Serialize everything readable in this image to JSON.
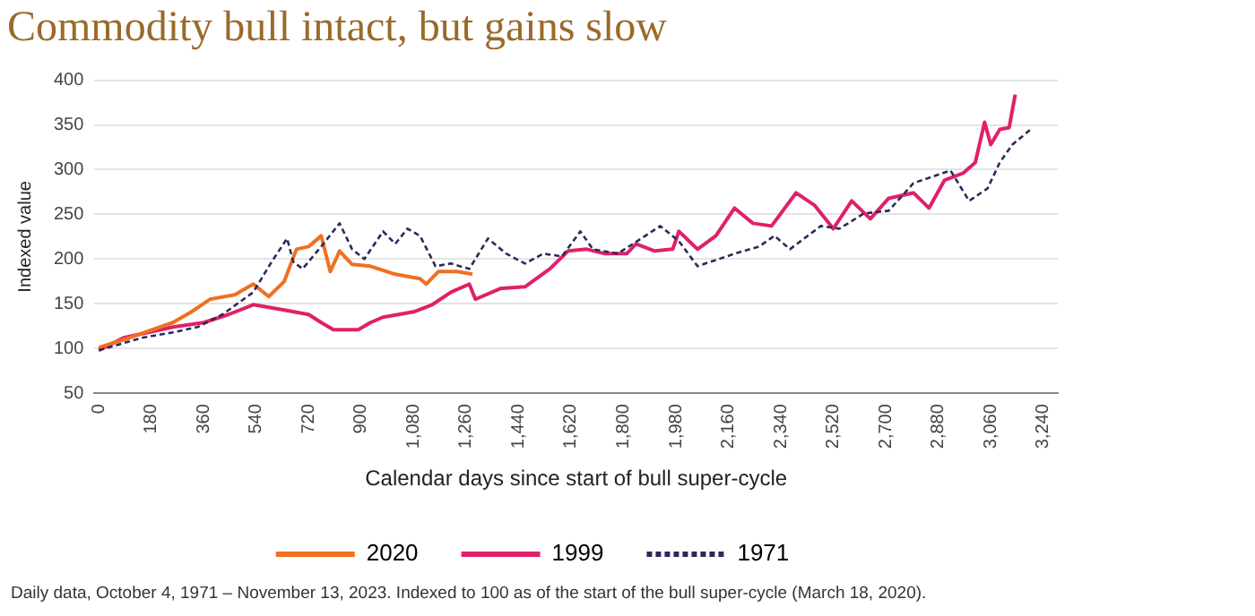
{
  "chart_data": {
    "type": "line",
    "title": "Commodity bull intact, but gains slow",
    "xlabel": "Calendar days since start of bull super-cycle",
    "ylabel": "Indexed value",
    "annotations": [
      "Daily data, October 4, 1971 – November 13, 2023. Indexed to 100 as of the start of the bull super-cycle (March 18, 2020)."
    ],
    "xlim": [
      -15,
      3290
    ],
    "xticks": [
      0,
      180,
      360,
      540,
      720,
      900,
      {
        "value": 1080,
        "label": "1,080"
      },
      {
        "value": 1260,
        "label": "1,260"
      },
      {
        "value": 1440,
        "label": "1,440"
      },
      {
        "value": 1620,
        "label": "1,620"
      },
      {
        "value": 1800,
        "label": "1,800"
      },
      {
        "value": 1980,
        "label": "1,980"
      },
      {
        "value": 2160,
        "label": "2,160"
      },
      {
        "value": 2340,
        "label": "2,340"
      },
      {
        "value": 2520,
        "label": "2,520"
      },
      {
        "value": 2700,
        "label": "2,700"
      },
      {
        "value": 2880,
        "label": "2,880"
      },
      {
        "value": 3060,
        "label": "3,060"
      },
      {
        "value": 3240,
        "label": "3,240"
      }
    ],
    "ylim": [
      50,
      400
    ],
    "yticks": [
      50,
      100,
      150,
      200,
      250,
      300,
      350,
      400
    ],
    "grid": "y",
    "legend": "bottom",
    "marker": "none",
    "series": [
      {
        "name": "2020",
        "color": "#f07020",
        "line_style": "solid",
        "x": [
          0,
          106,
          254,
          318,
          381,
          466,
          530,
          583,
          636,
          678,
          720,
          763,
          794,
          826,
          869,
          932,
          1017,
          1102,
          1123,
          1165,
          1229,
          1282
        ],
        "values": [
          101,
          112,
          129,
          141,
          155,
          160,
          172,
          158,
          175,
          211,
          214,
          226,
          186,
          209,
          194,
          192,
          183,
          178,
          172,
          186,
          186,
          183
        ]
      },
      {
        "name": "1999",
        "color": "#e0206a",
        "line_style": "solid",
        "x": [
          0,
          85,
          254,
          360,
          445,
          530,
          636,
          720,
          763,
          805,
          890,
          932,
          975,
          1080,
          1144,
          1208,
          1271,
          1292,
          1377,
          1462,
          1547,
          1610,
          1674,
          1737,
          1811,
          1843,
          1907,
          1969,
          1990,
          2054,
          2117,
          2181,
          2244,
          2308,
          2392,
          2456,
          2520,
          2583,
          2647,
          2710,
          2795,
          2848,
          2901,
          2965,
          3007,
          3039,
          3060,
          3091,
          3123,
          3144
        ],
        "values": [
          98,
          112,
          124,
          129,
          138,
          149,
          143,
          138,
          129,
          121,
          121,
          129,
          135,
          141,
          149,
          163,
          172,
          155,
          167,
          169,
          189,
          209,
          211,
          206,
          206,
          217,
          209,
          211,
          231,
          211,
          226,
          257,
          240,
          237,
          274,
          260,
          234,
          265,
          245,
          268,
          274,
          257,
          288,
          296,
          308,
          353,
          328,
          345,
          347,
          384
        ]
      },
      {
        "name": "1971",
        "color": "#2a2a5a",
        "line_style": "dashed",
        "x": [
          0,
          148,
          254,
          339,
          424,
          530,
          593,
          646,
          667,
          699,
          763,
          826,
          869,
          911,
          975,
          1017,
          1059,
          1102,
          1155,
          1208,
          1271,
          1335,
          1398,
          1462,
          1525,
          1589,
          1652,
          1695,
          1780,
          1875,
          1926,
          1990,
          2054,
          2181,
          2265,
          2318,
          2371,
          2477,
          2541,
          2625,
          2710,
          2795,
          2922,
          2986,
          3049,
          3091,
          3134,
          3197
        ],
        "values": [
          98,
          112,
          118,
          124,
          138,
          163,
          197,
          223,
          197,
          189,
          214,
          240,
          211,
          200,
          231,
          217,
          234,
          226,
          192,
          195,
          189,
          223,
          206,
          195,
          206,
          203,
          231,
          211,
          206,
          226,
          237,
          220,
          192,
          206,
          214,
          226,
          211,
          237,
          234,
          251,
          254,
          285,
          299,
          265,
          279,
          308,
          328,
          345
        ]
      }
    ]
  }
}
